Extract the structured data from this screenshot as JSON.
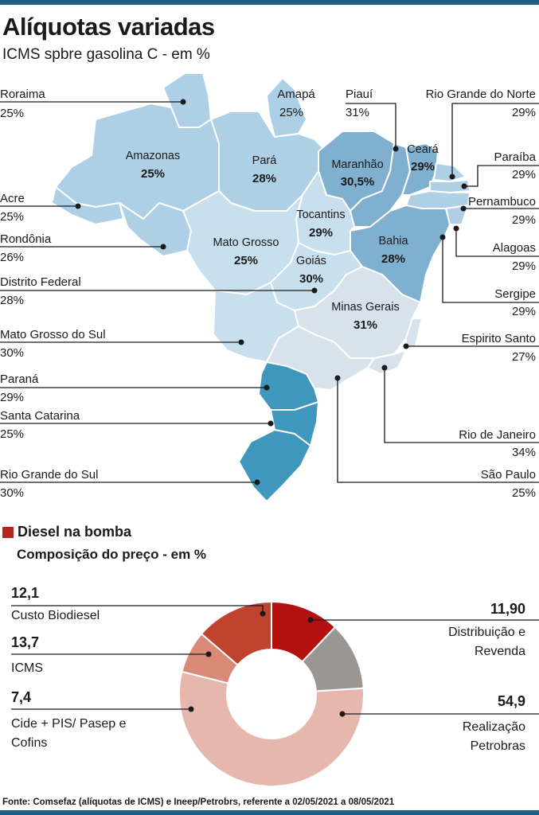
{
  "colors": {
    "brand_bar": "#1d5f86",
    "diesel_square": "#b0281c"
  },
  "map": {
    "title": "Alíquotas variadas",
    "subtitle": "ICMS spbre gasolina C - em %"
  },
  "diesel": {
    "title": "Diesel na bomba",
    "subtitle": "Composição do preço - em %"
  },
  "source": "Fonte: Comsefaz (alíquotas de ICMS)  e Ineep/Petrobrs, referente a 02/05/2021 a 08/05/2021",
  "chart_data": [
    {
      "type": "table",
      "title": "Alíquotas variadas",
      "subtitle": "ICMS spbre gasolina C - em %",
      "rows": [
        {
          "state": "Roraima",
          "value": "25%",
          "v": 25
        },
        {
          "state": "Amazonas",
          "value": "25%",
          "v": 25
        },
        {
          "state": "Amapá",
          "value": "25%",
          "v": 25
        },
        {
          "state": "Pará",
          "value": "28%",
          "v": 28
        },
        {
          "state": "Piauí",
          "value": "31%",
          "v": 31
        },
        {
          "state": "Maranhão",
          "value": "30,5%",
          "v": 30.5
        },
        {
          "state": "Ceará",
          "value": "29%",
          "v": 29
        },
        {
          "state": "Rio Grande do Norte",
          "value": "29%",
          "v": 29
        },
        {
          "state": "Paraíba",
          "value": "29%",
          "v": 29
        },
        {
          "state": "Pernambuco",
          "value": "29%",
          "v": 29
        },
        {
          "state": "Alagoas",
          "value": "29%",
          "v": 29
        },
        {
          "state": "Sergipe",
          "value": "29%",
          "v": 29
        },
        {
          "state": "Bahia",
          "value": "28%",
          "v": 28
        },
        {
          "state": "Tocantins",
          "value": "29%",
          "v": 29
        },
        {
          "state": "Acre",
          "value": "25%",
          "v": 25
        },
        {
          "state": "Rondônia",
          "value": "26%",
          "v": 26
        },
        {
          "state": "Mato Grosso",
          "value": "25%",
          "v": 25
        },
        {
          "state": "Goiás",
          "value": "30%",
          "v": 30
        },
        {
          "state": "Distrito Federal",
          "value": "28%",
          "v": 28
        },
        {
          "state": "Minas Gerais",
          "value": "31%",
          "v": 31
        },
        {
          "state": "Mato Grosso do Sul",
          "value": "30%",
          "v": 30
        },
        {
          "state": "Espirito Santo",
          "value": "27%",
          "v": 27
        },
        {
          "state": "Rio de Janeiro",
          "value": "34%",
          "v": 34
        },
        {
          "state": "São Paulo",
          "value": "25%",
          "v": 25
        },
        {
          "state": "Paraná",
          "value": "29%",
          "v": 29
        },
        {
          "state": "Santa Catarina",
          "value": "25%",
          "v": 25
        },
        {
          "state": "Rio Grande do Sul",
          "value": "30%",
          "v": 30
        }
      ]
    },
    {
      "type": "pie",
      "title": "Diesel na bomba",
      "subtitle": "Composição do preço - em %",
      "donut": true,
      "slices": [
        {
          "label": "Custo Biodiesel",
          "value_text": "12,1",
          "value": 12.1,
          "color": "#b51010"
        },
        {
          "label": "Distribuição e Revenda",
          "value_text": "11,90",
          "value": 11.9,
          "color": "#9a9692"
        },
        {
          "label": "Realização Petrobras",
          "value_text": "54,9",
          "value": 54.9,
          "color": "#e6b8ad"
        },
        {
          "label": "Cide + PIS/ Pasep e Cofins",
          "value_text": "7,4",
          "value": 7.4,
          "color": "#d98a77"
        },
        {
          "label": "ICMS",
          "value_text": "13,7",
          "value": 13.7,
          "color": "#c0432d"
        }
      ]
    }
  ]
}
